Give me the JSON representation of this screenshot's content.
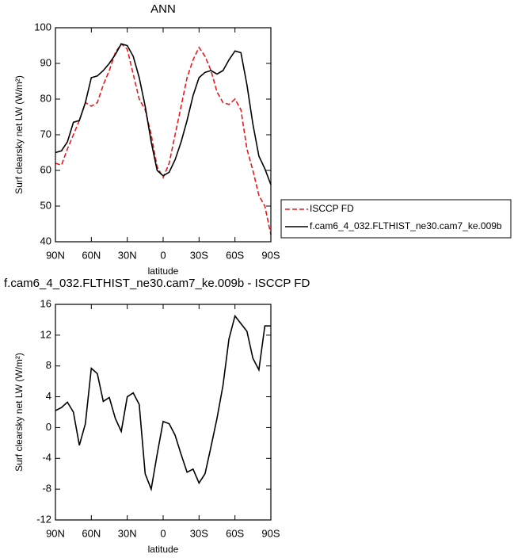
{
  "chart_data": [
    {
      "type": "line",
      "title": "ANN",
      "xlabel": "latitude",
      "ylabel": "Surf clearsky net LW (W/m²)",
      "x": [
        90,
        85,
        80,
        75,
        70,
        65,
        60,
        55,
        50,
        45,
        40,
        35,
        30,
        25,
        20,
        15,
        10,
        5,
        0,
        -5,
        -10,
        -15,
        -20,
        -25,
        -30,
        -35,
        -40,
        -45,
        -50,
        -55,
        -60,
        -65,
        -70,
        -75,
        -80,
        -85,
        -90
      ],
      "xlim": [
        90,
        -90
      ],
      "xticks": [
        {
          "value": 90,
          "label": "90N"
        },
        {
          "value": 60,
          "label": "60N"
        },
        {
          "value": 30,
          "label": "30N"
        },
        0,
        {
          "value": -30,
          "label": "30S"
        },
        {
          "value": -60,
          "label": "60S"
        },
        {
          "value": -90,
          "label": "90S"
        }
      ],
      "ylim": [
        40,
        100
      ],
      "yticks": [
        40,
        50,
        60,
        70,
        80,
        90,
        100
      ],
      "legend": "outside-right",
      "series": [
        {
          "name": "ISCCP FD",
          "color": "#e41a1c",
          "dashed": true,
          "values": [
            62,
            61.5,
            66,
            70,
            74,
            79,
            78,
            79,
            84,
            88,
            93,
            95.5,
            94,
            87,
            80,
            77,
            70,
            61,
            58,
            62,
            70,
            78,
            86,
            91,
            94.5,
            92,
            88,
            82,
            79,
            78.5,
            80,
            77,
            66,
            60,
            53,
            50,
            42
          ]
        },
        {
          "name": "f.cam6_4_032.FLTHIST_ne30.cam7_ke.009b",
          "color": "#000000",
          "dashed": false,
          "values": [
            65,
            65.5,
            68,
            73.5,
            74,
            79,
            86,
            86.5,
            88,
            90,
            92.5,
            95.5,
            95,
            92,
            86,
            78,
            68,
            60,
            58.5,
            59.5,
            63,
            68,
            74,
            81,
            86,
            87.5,
            88,
            87,
            88,
            91,
            93.5,
            93,
            84,
            73,
            64,
            60.5,
            56
          ]
        }
      ]
    },
    {
      "type": "line",
      "title": "f.cam6_4_032.FLTHIST_ne30.cam7_ke.009b - ISCCP FD",
      "xlabel": "latitude",
      "ylabel": "Surf clearsky net LW (W/m²)",
      "x": [
        90,
        85,
        80,
        75,
        70,
        65,
        60,
        55,
        50,
        45,
        40,
        35,
        30,
        25,
        20,
        15,
        10,
        5,
        0,
        -5,
        -10,
        -15,
        -20,
        -25,
        -30,
        -35,
        -40,
        -45,
        -50,
        -55,
        -60,
        -65,
        -70,
        -75,
        -80,
        -85,
        -90
      ],
      "xlim": [
        90,
        -90
      ],
      "xticks": [
        {
          "value": 90,
          "label": "90N"
        },
        {
          "value": 60,
          "label": "60N"
        },
        {
          "value": 30,
          "label": "30N"
        },
        0,
        {
          "value": -30,
          "label": "30S"
        },
        {
          "value": -60,
          "label": "60S"
        },
        {
          "value": -90,
          "label": "90S"
        }
      ],
      "ylim": [
        -12,
        16
      ],
      "yticks": [
        -12,
        -8,
        -4,
        0,
        4,
        8,
        12,
        16
      ],
      "series": [
        {
          "color": "#000000",
          "dashed": false,
          "values": [
            2.2,
            2.6,
            3.3,
            2.0,
            -2.3,
            0.5,
            7.7,
            7.0,
            3.4,
            3.9,
            1.2,
            -0.5,
            4.0,
            4.5,
            3.0,
            -6,
            -8,
            -3.5,
            0.8,
            0.5,
            -1,
            -3.5,
            -5.8,
            -5.4,
            -7.2,
            -6,
            -2.5,
            1.2,
            5.5,
            11.5,
            14.5,
            13.5,
            12.5,
            9,
            7.5,
            13.2,
            13.2
          ]
        }
      ]
    }
  ]
}
